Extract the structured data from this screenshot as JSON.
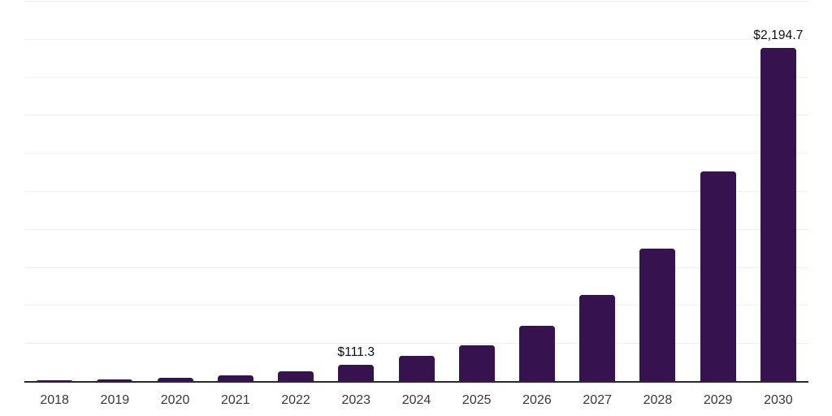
{
  "chart_data": {
    "type": "bar",
    "title": "",
    "xlabel": "",
    "ylabel": "",
    "categories": [
      "2018",
      "2019",
      "2020",
      "2021",
      "2022",
      "2023",
      "2024",
      "2025",
      "2026",
      "2027",
      "2028",
      "2029",
      "2030"
    ],
    "values": [
      12,
      18,
      25,
      44,
      67,
      111.3,
      170,
      240,
      371,
      570,
      875,
      1385,
      2194.7
    ],
    "data_labels": [
      "",
      "",
      "",
      "",
      "",
      "$111.3",
      "",
      "",
      "",
      "",
      "",
      "",
      "$2,194.7"
    ],
    "ylim": [
      0,
      2500
    ],
    "gridline_interval": 250,
    "grid": true,
    "legend": "none",
    "colors": {
      "bar": "#36124e",
      "gridline": "#f1f1f1",
      "axis_line": "#2b2b2b",
      "value_label": "#0d0d0d",
      "tick_label": "#383838",
      "background": "#ffffff"
    }
  }
}
